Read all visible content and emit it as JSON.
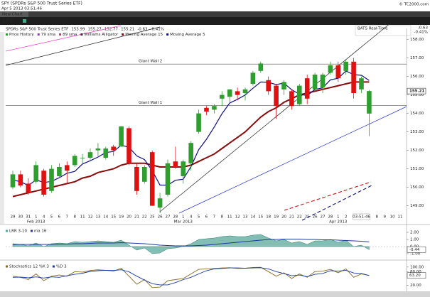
{
  "header": {
    "title": "SPY (SPDRs S&P 500 Trust Series ETF)",
    "timestamp": "Apr 5 2013 03:51:46",
    "copyright": "© TC2000.com",
    "tab": "New Chart",
    "symbol": "SPY",
    "add_indicator": "Add Indicator",
    "period": "Daily",
    "security": "SPDRs S&P 500 Trust Series ETF",
    "change": -0.63,
    "change_pct": "-0.41%",
    "feed": "BATS Real-Time"
  },
  "chart_data": [
    {
      "type": "candlestick",
      "up_color": "#2e9e2e",
      "down_color": "#e01010",
      "grid": false,
      "cursor_time": "03:51:46",
      "studies": [
        {
          "name": "Price History",
          "color": "#2e9e2e"
        },
        {
          "name": "79 sma",
          "color": "#9932cc"
        },
        {
          "name": "89 sma",
          "color": "#cc3366"
        },
        {
          "name": "Williams Alligator",
          "color": "#333333"
        }
      ],
      "categories": [
        "29",
        "30",
        "31",
        "1",
        "4",
        "5",
        "6",
        "7",
        "8",
        "11",
        "12",
        "13",
        "14",
        "15",
        "19",
        "20",
        "21",
        "22",
        "25",
        "26",
        "27",
        "28",
        "1",
        "4",
        "5",
        "6",
        "7",
        "8",
        "11",
        "12",
        "13",
        "14",
        "15",
        "18",
        "19",
        "20",
        "21",
        "22",
        "25",
        "26",
        "27",
        "28",
        "1",
        "2",
        null,
        null,
        null,
        "8",
        "9",
        "10",
        "11"
      ],
      "month_labels": [
        null,
        null,
        null,
        "Feb 2013",
        null,
        null,
        null,
        null,
        null,
        null,
        null,
        null,
        null,
        null,
        null,
        null,
        null,
        null,
        null,
        null,
        null,
        null,
        "Mar 2013",
        null,
        null,
        null,
        null,
        null,
        null,
        null,
        null,
        null,
        null,
        null,
        null,
        null,
        null,
        null,
        null,
        null,
        null,
        null,
        "Apr 2013",
        null,
        null,
        null,
        null,
        null,
        null,
        null,
        null
      ],
      "open": [
        150.0,
        150.7,
        150.2,
        150.3,
        150.9,
        149.8,
        150.6,
        151.2,
        151.2,
        151.6,
        151.6,
        152.0,
        151.6,
        152.2,
        152.2,
        153.2,
        151.1,
        150.3,
        151.9,
        148.9,
        149.6,
        151.4,
        150.6,
        151.3,
        153.0,
        154.3,
        154.2,
        154.8,
        154.9,
        155.2,
        155.1,
        155.6,
        156.3,
        155.8,
        155.5,
        155.3,
        155.2,
        154.5,
        155.9,
        155.3,
        155.4,
        156.2,
        156.6,
        156.3,
        156.8,
        155.3,
        153.99,
        null,
        null,
        null,
        null
      ],
      "high": [
        150.9,
        150.9,
        150.5,
        151.4,
        151.0,
        151.2,
        151.3,
        151.4,
        151.8,
        151.8,
        152.1,
        152.4,
        152.2,
        152.3,
        153.3,
        153.3,
        151.3,
        151.2,
        152.0,
        149.7,
        151.5,
        152.2,
        151.5,
        152.5,
        154.2,
        154.4,
        154.5,
        155.2,
        155.3,
        155.4,
        155.4,
        156.3,
        156.8,
        156.0,
        155.6,
        155.8,
        155.3,
        155.6,
        156.1,
        156.2,
        156.2,
        156.8,
        156.8,
        156.9,
        157.0,
        156.0,
        155.27,
        null,
        null,
        null,
        null
      ],
      "low": [
        149.9,
        150.0,
        149.6,
        150.2,
        149.5,
        149.7,
        150.5,
        150.2,
        151.1,
        151.3,
        151.5,
        151.7,
        151.5,
        151.7,
        152.2,
        151.2,
        149.6,
        150.2,
        149.0,
        148.6,
        149.5,
        151.0,
        150.2,
        150.9,
        152.9,
        153.9,
        154.0,
        154.4,
        154.6,
        154.7,
        154.7,
        155.5,
        156.2,
        155.0,
        153.7,
        155.0,
        154.2,
        154.4,
        154.5,
        155.2,
        155.1,
        156.1,
        155.7,
        156.1,
        154.8,
        155.1,
        152.77,
        null,
        null,
        null,
        null
      ],
      "close": [
        150.7,
        150.1,
        149.7,
        151.2,
        149.6,
        151.0,
        151.1,
        150.9,
        151.7,
        151.6,
        151.9,
        152.1,
        152.1,
        152.0,
        153.3,
        151.3,
        149.8,
        151.1,
        149.0,
        149.4,
        151.3,
        151.1,
        151.4,
        152.4,
        154.0,
        154.1,
        154.4,
        155.0,
        155.3,
        155.0,
        155.3,
        156.2,
        156.7,
        155.2,
        154.4,
        155.7,
        154.4,
        155.5,
        154.8,
        156.1,
        156.1,
        156.6,
        155.9,
        156.8,
        155.1,
        155.9,
        155.21,
        null,
        null,
        null,
        null
      ],
      "series": [
        {
          "name": "Moving Average 15",
          "color": "#8b0a0a",
          "values": [
            149.5,
            149.6,
            149.7,
            149.8,
            149.9,
            150.0,
            150.1,
            150.2,
            150.3,
            150.5,
            150.6,
            150.8,
            150.9,
            151.0,
            151.2,
            151.3,
            151.3,
            151.3,
            151.2,
            151.1,
            151.1,
            151.1,
            151.1,
            151.2,
            151.4,
            151.6,
            151.8,
            152.1,
            152.4,
            152.7,
            153.0,
            153.4,
            153.8,
            154.1,
            154.3,
            154.6,
            154.8,
            155.0,
            155.1,
            155.2,
            155.3,
            155.4,
            155.5,
            155.6,
            155.7,
            155.7,
            155.7,
            null,
            null,
            null,
            null
          ]
        },
        {
          "name": "Moving Average 5",
          "color": "#10108c",
          "values": [
            150.4,
            150.3,
            150.1,
            150.4,
            150.26,
            150.32,
            150.52,
            150.76,
            150.86,
            151.26,
            151.44,
            151.64,
            151.88,
            151.94,
            152.28,
            152.16,
            151.7,
            151.5,
            150.9,
            150.12,
            150.12,
            150.38,
            150.44,
            151.12,
            152.04,
            152.6,
            153.26,
            153.98,
            154.56,
            154.76,
            155.0,
            155.36,
            155.7,
            155.68,
            155.56,
            155.64,
            155.28,
            155.04,
            154.96,
            155.3,
            155.38,
            155.82,
            155.9,
            156.3,
            156.1,
            156.06,
            155.78,
            null,
            null,
            null,
            null
          ]
        }
      ],
      "annotations": [
        {
          "label": "Giant Wall 2",
          "value": 156.67
        },
        {
          "label": "Giant Wall 1",
          "value": 154.43
        }
      ],
      "ylim": [
        148.6,
        158.6
      ],
      "yticks": [
        {
          "value": 149,
          "label": "149.00"
        },
        {
          "value": 150,
          "label": "150.00"
        },
        {
          "value": 151,
          "label": "151.00"
        },
        {
          "value": 152,
          "label": "152.00"
        },
        {
          "value": 153,
          "label": "153.00"
        },
        {
          "value": 154,
          "label": "154.00"
        },
        {
          "value": 155,
          "label": "155.00"
        },
        {
          "value": 156,
          "label": "156.00"
        },
        {
          "value": 157,
          "label": "157.00"
        },
        {
          "value": 158,
          "label": "158.00"
        }
      ]
    },
    {
      "type": "area",
      "ylim": [
        -1.5,
        2.5
      ],
      "yticks": [
        {
          "value": 2,
          "label": "2.00"
        },
        {
          "value": 1,
          "label": "1.00"
        },
        {
          "value": 0,
          "label": "0.00"
        },
        {
          "value": -1,
          "label": "-1.00"
        }
      ],
      "series": [
        {
          "name": "LRR 3-10",
          "color": "#5aa89c",
          "values": [
            0.4,
            0.3,
            0.1,
            0.5,
            0.0,
            0.4,
            0.5,
            0.4,
            0.7,
            0.6,
            0.7,
            0.8,
            0.7,
            0.6,
            0.9,
            0.2,
            -0.5,
            -0.2,
            -1.0,
            -0.9,
            -0.3,
            -0.2,
            0.0,
            0.4,
            1.0,
            1.1,
            1.2,
            1.4,
            1.5,
            1.4,
            1.4,
            1.6,
            1.7,
            1.2,
            0.8,
            1.0,
            0.5,
            0.7,
            0.3,
            0.8,
            0.8,
            1.0,
            0.6,
            0.9,
            0.0,
            0.2,
            -0.44,
            null,
            null,
            null,
            null
          ]
        },
        {
          "name": "ma 16",
          "color": "#1a3aa0",
          "values": [
            0.3,
            0.3,
            0.3,
            0.3,
            0.3,
            0.3,
            0.35,
            0.35,
            0.4,
            0.4,
            0.45,
            0.5,
            0.5,
            0.5,
            0.55,
            0.5,
            0.45,
            0.4,
            0.3,
            0.2,
            0.15,
            0.1,
            0.1,
            0.1,
            0.15,
            0.2,
            0.3,
            0.4,
            0.5,
            0.6,
            0.7,
            0.8,
            0.9,
            1.0,
            1.0,
            1.05,
            1.05,
            1.05,
            1.0,
            1.0,
            0.95,
            0.95,
            0.9,
            0.85,
            0.8,
            0.75,
            0.65,
            null,
            null,
            null,
            null
          ]
        }
      ]
    },
    {
      "type": "line",
      "ylim": [
        0,
        112
      ],
      "yticks": [
        {
          "value": 100,
          "label": "100.00"
        },
        {
          "value": 80,
          "label": "80.00"
        },
        {
          "value": 20,
          "label": "20.00"
        }
      ],
      "series": [
        {
          "name": "Stochastics 12 %K 3",
          "color": "#8a6a20",
          "values": [
            60,
            55,
            45,
            70,
            40,
            60,
            65,
            60,
            80,
            78,
            85,
            88,
            86,
            82,
            95,
            60,
            25,
            45,
            10,
            12,
            40,
            45,
            50,
            70,
            90,
            92,
            94,
            96,
            97,
            94,
            95,
            98,
            99,
            80,
            60,
            75,
            50,
            70,
            55,
            80,
            82,
            90,
            75,
            92,
            55,
            70,
            63.2,
            null,
            null,
            null,
            null
          ],
          "value_labels": [
            null,
            null,
            null,
            null,
            null,
            null,
            null,
            null,
            null,
            null,
            null,
            null,
            null,
            null,
            null,
            null,
            null,
            null,
            null,
            null,
            null,
            null,
            null,
            null,
            null,
            null,
            null,
            null,
            null,
            null,
            null,
            null,
            null,
            null,
            null,
            null,
            null,
            null,
            null,
            null,
            null,
            null,
            null,
            null,
            null,
            null,
            "63.20",
            null,
            null,
            null,
            null
          ]
        },
        {
          "name": "%D 3",
          "color": "#1a3aa0",
          "values": [
            55,
            56,
            53,
            57,
            52,
            57,
            55,
            62,
            68,
            73,
            81,
            84,
            86,
            85,
            88,
            79,
            60,
            43,
            27,
            22,
            22,
            32,
            45,
            55,
            70,
            84,
            92,
            94,
            96,
            96,
            95,
            96,
            97,
            92,
            80,
            72,
            62,
            65,
            58,
            68,
            72,
            84,
            82,
            86,
            74,
            72,
            63,
            null,
            null,
            null,
            null
          ]
        }
      ]
    }
  ]
}
